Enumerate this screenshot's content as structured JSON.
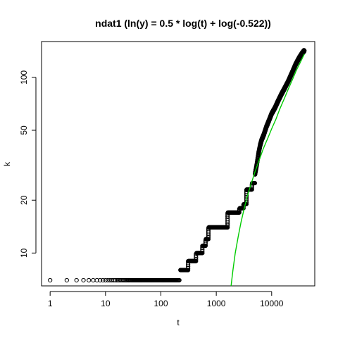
{
  "chart_data": {
    "type": "scatter",
    "title": "ndat1 (ln(y) = 0.5 * log(t) + log(-0.522))",
    "xlabel": "t",
    "ylabel": "k",
    "x_scale": "log",
    "y_scale": "log",
    "xlim": [
      0.7,
      60000
    ],
    "ylim": [
      6.5,
      160
    ],
    "x_ticks": [
      {
        "value": 1,
        "label": "1"
      },
      {
        "value": 10,
        "label": "10"
      },
      {
        "value": 100,
        "label": "100"
      },
      {
        "value": 1000,
        "label": "1000"
      },
      {
        "value": 10000,
        "label": "10000"
      }
    ],
    "y_ticks": [
      {
        "value": 10,
        "label": "10"
      },
      {
        "value": 20,
        "label": "20"
      },
      {
        "value": 50,
        "label": "50"
      },
      {
        "value": 100,
        "label": "100"
      }
    ],
    "grid": false,
    "colors": {
      "points": "#000000",
      "fit": "#00cc00"
    },
    "series": [
      {
        "kind": "points",
        "steps": [
          {
            "t_from": 1,
            "t_to": 220,
            "k": 7
          },
          {
            "t_from": 225,
            "t_to": 310,
            "k": 8
          },
          {
            "t_from": 315,
            "t_to": 430,
            "k": 9
          },
          {
            "t_from": 440,
            "t_to": 560,
            "k": 10
          },
          {
            "t_from": 570,
            "t_to": 640,
            "k": 11
          },
          {
            "t_from": 650,
            "t_to": 720,
            "k": 12
          },
          {
            "t_from": 730,
            "t_to": 1600,
            "k": 14
          },
          {
            "t_from": 1620,
            "t_to": 2600,
            "k": 17
          },
          {
            "t_from": 2650,
            "t_to": 3100,
            "k": 18
          },
          {
            "t_from": 3150,
            "t_to": 3500,
            "k": 19
          },
          {
            "t_from": 3550,
            "t_to": 4400,
            "k": 23
          },
          {
            "t_from": 4450,
            "t_to": 5000,
            "k": 25
          }
        ],
        "rising": [
          [
            5000,
            28
          ],
          [
            5400,
            32
          ],
          [
            5800,
            37
          ],
          [
            6200,
            41
          ],
          [
            6600,
            44
          ],
          [
            7200,
            47
          ],
          [
            8000,
            52
          ],
          [
            9000,
            57
          ],
          [
            10000,
            62
          ],
          [
            11500,
            67
          ],
          [
            13000,
            73
          ],
          [
            15000,
            80
          ],
          [
            17000,
            86
          ],
          [
            20000,
            95
          ],
          [
            23000,
            105
          ],
          [
            27000,
            118
          ],
          [
            31000,
            128
          ],
          [
            35000,
            136
          ],
          [
            39000,
            142
          ]
        ]
      },
      {
        "kind": "fit-curve",
        "x_start": 1850,
        "x_end": 39000,
        "curve": [
          [
            1850,
            6.5
          ],
          [
            2000,
            8
          ],
          [
            2200,
            10
          ],
          [
            2500,
            12.5
          ],
          [
            2800,
            15
          ],
          [
            3200,
            18
          ],
          [
            3700,
            21.5
          ],
          [
            4300,
            25
          ],
          [
            5000,
            29
          ],
          [
            6000,
            34
          ],
          [
            7000,
            39
          ],
          [
            8500,
            45
          ],
          [
            10000,
            51
          ],
          [
            12000,
            58
          ],
          [
            14000,
            66
          ],
          [
            17000,
            76
          ],
          [
            20000,
            86
          ],
          [
            24000,
            98
          ],
          [
            28000,
            110
          ],
          [
            33000,
            122
          ],
          [
            39000,
            136
          ]
        ]
      }
    ]
  }
}
